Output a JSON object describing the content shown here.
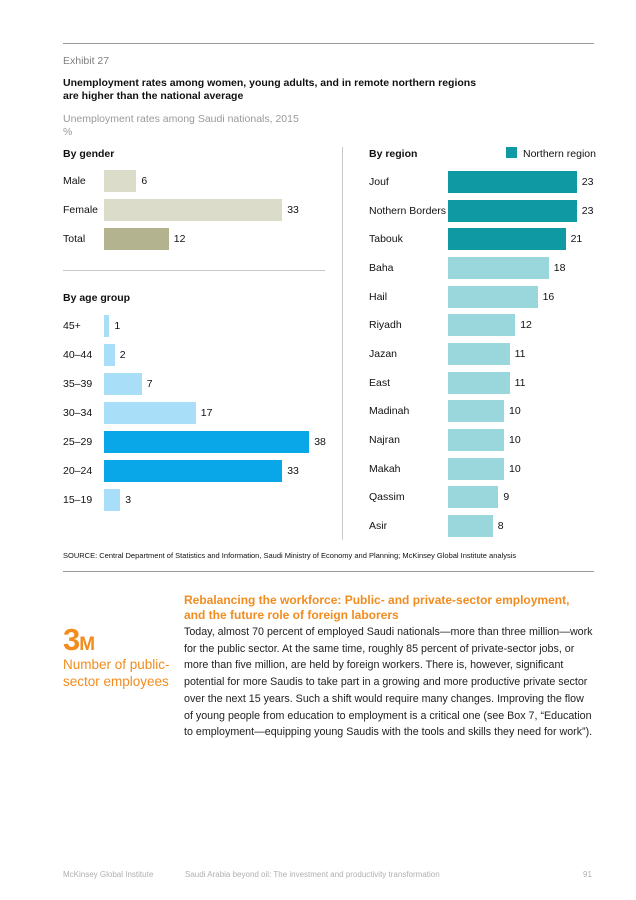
{
  "exhibit": "Exhibit 27",
  "title": "Unemployment rates among women, young adults, and in remote northern regions are higher than the national average",
  "subtitle_line1": "Unemployment rates among Saudi nationals, 2015",
  "subtitle_line2": "%",
  "colors": {
    "gender_light": "#dcdccb",
    "gender_total": "#b4b38f",
    "age_light": "#a8def7",
    "age_dark": "#0aa7e8",
    "region_light": "#99d7dd",
    "region_dark": "#0f9aa3",
    "accent": "#f28c1e"
  },
  "chart_data": [
    {
      "type": "bar",
      "orientation": "horizontal",
      "title": "By gender",
      "categories": [
        "Male",
        "Female",
        "Total"
      ],
      "values": [
        6,
        33,
        12
      ],
      "highlight": [
        false,
        false,
        true
      ]
    },
    {
      "type": "bar",
      "orientation": "horizontal",
      "title": "By age group",
      "categories": [
        "45+",
        "40–44",
        "35–39",
        "30–34",
        "25–29",
        "20–24",
        "15–19"
      ],
      "values": [
        1,
        2,
        7,
        17,
        38,
        33,
        3
      ],
      "highlight": [
        false,
        false,
        false,
        false,
        true,
        true,
        false
      ]
    },
    {
      "type": "bar",
      "orientation": "horizontal",
      "title": "By region",
      "legend": "Northern region",
      "categories": [
        "Jouf",
        "Nothern Borders",
        "Tabouk",
        "Baha",
        "Hail",
        "Riyadh",
        "Jazan",
        "East",
        "Madinah",
        "Najran",
        "Makah",
        "Qassim",
        "Asir"
      ],
      "values": [
        23,
        23,
        21,
        18,
        16,
        12,
        11,
        11,
        10,
        10,
        10,
        9,
        8
      ],
      "highlight": [
        true,
        true,
        true,
        false,
        false,
        false,
        false,
        false,
        false,
        false,
        false,
        false,
        false
      ]
    }
  ],
  "source": "SOURCE:  Central Department of Statistics and Information, Saudi Ministry of Economy and Planning; McKinsey Global Institute analysis",
  "sidebar": {
    "stat_number": "3",
    "stat_unit": "M",
    "caption": "Number of public-sector employees"
  },
  "section": {
    "heading": "Rebalancing the workforce: Public- and private-sector employment, and the future role of foreign laborers",
    "body": "Today, almost 70 percent of employed Saudi nationals—more than three million—work for the public sector. At the same time, roughly 85 percent of private-sector jobs, or more than five million, are held by foreign workers. There is, however, significant potential for more Saudis to take part in a growing and more productive private sector over the next 15 years. Such a shift would require many changes. Improving the flow of young people from education to employment is a critical one (see Box 7, “Education to employment—equipping young Saudis with the tools and skills they need for work”)."
  },
  "footer": {
    "left": "McKinsey Global Institute",
    "center": "Saudi Arabia beyond oil: The investment and productivity transformation",
    "page": "91"
  }
}
